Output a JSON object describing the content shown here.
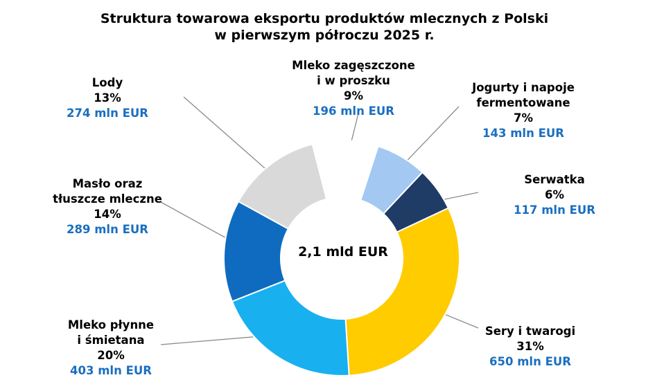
{
  "chart_data": {
    "type": "pie",
    "variant": "donut",
    "title": [
      "Struktura towarowa eksportu produktów mlecznych z Polski",
      "w pierwszym półroczu 2025 r."
    ],
    "center_label": "2,1 mld EUR",
    "legend": "none",
    "slices": [
      {
        "name_lines": [
          "Jogurty i napoje",
          "fermentowane"
        ],
        "percent": 7,
        "percent_label": "7%",
        "value_label": "143 mln EUR",
        "value": 143,
        "color": "#a3c8f2"
      },
      {
        "name_lines": [
          "Serwatka"
        ],
        "percent": 6,
        "percent_label": "6%",
        "value_label": "117 mln EUR",
        "value": 117,
        "color": "#1f3c66"
      },
      {
        "name_lines": [
          "Sery i twarogi"
        ],
        "percent": 31,
        "percent_label": "31%",
        "value_label": "650 mln EUR",
        "value": 650,
        "color": "#ffcc00"
      },
      {
        "name_lines": [
          "Mleko płynne",
          "i śmietana"
        ],
        "percent": 20,
        "percent_label": "20%",
        "value_label": "403 mln EUR",
        "value": 403,
        "color": "#19b0f0"
      },
      {
        "name_lines": [
          "Masło oraz",
          "tłuszcze mleczne"
        ],
        "percent": 14,
        "percent_label": "14%",
        "value_label": "289 mln EUR",
        "value": 289,
        "color": "#0f6bbf"
      },
      {
        "name_lines": [
          "Lody"
        ],
        "percent": 13,
        "percent_label": "13%",
        "value_label": "274 mln EUR",
        "value": 274,
        "color": "#d9d9d9"
      },
      {
        "name_lines": [
          "Mleko zagęszczone",
          "i w proszku"
        ],
        "percent": 9,
        "percent_label": "9%",
        "value_label": "196 mln EUR",
        "value": 196,
        "color": "#ffffff"
      }
    ],
    "colors": {
      "value_text": "#1a6fc0",
      "label_text": "#000000",
      "leader_line": "#8a8a8a"
    }
  }
}
